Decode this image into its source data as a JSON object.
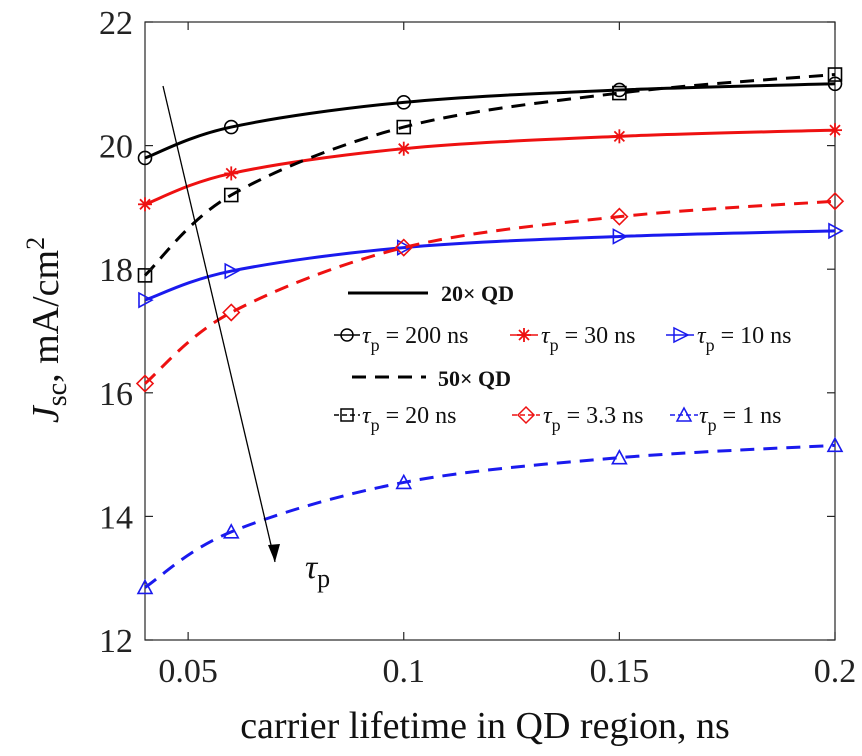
{
  "chart_data": {
    "type": "line",
    "title": "",
    "xlabel": "carrier lifetime in QD region, ns",
    "ylabel": {
      "J": "J",
      "sub": "sc",
      "rest": ", mA/cm",
      "sup": "2"
    },
    "xlim": [
      0.04,
      0.2
    ],
    "ylim": [
      12,
      22
    ],
    "x_ticks": [
      0.05,
      0.1,
      0.15,
      0.2
    ],
    "x_tick_labels": [
      "0.05",
      "0.1",
      "0.15",
      "0.2"
    ],
    "y_ticks": [
      12,
      14,
      16,
      18,
      20,
      22
    ],
    "y_tick_labels": [
      "12",
      "14",
      "16",
      "18",
      "20",
      "22"
    ],
    "grid": false,
    "legend_position": "center-right",
    "x": [
      0.04,
      0.06,
      0.1,
      0.15,
      0.2
    ],
    "series": [
      {
        "name": "τp = 200 ns",
        "group": "20× QD",
        "color": "#000000",
        "dash": "solid",
        "marker": "circle",
        "values": [
          19.8,
          20.3,
          20.7,
          20.9,
          21.0
        ]
      },
      {
        "name": "τp = 30 ns",
        "group": "20× QD",
        "color": "#ee1111",
        "dash": "solid",
        "marker": "asterisk",
        "values": [
          19.05,
          19.55,
          19.95,
          20.15,
          20.25
        ]
      },
      {
        "name": "τp = 10 ns",
        "group": "20× QD",
        "color": "#1a1aee",
        "dash": "solid",
        "marker": "triangle-right",
        "values": [
          17.5,
          17.97,
          18.35,
          18.53,
          18.62
        ]
      },
      {
        "name": "τp = 20 ns",
        "group": "50× QD",
        "color": "#000000",
        "dash": "dashed",
        "marker": "square",
        "values": [
          17.9,
          19.2,
          20.3,
          20.85,
          21.15
        ]
      },
      {
        "name": "τp = 3.3 ns",
        "group": "50× QD",
        "color": "#ee1111",
        "dash": "dashed",
        "marker": "diamond",
        "values": [
          16.15,
          17.3,
          18.35,
          18.85,
          19.1
        ]
      },
      {
        "name": "τp = 1 ns",
        "group": "50× QD",
        "color": "#1a1aee",
        "dash": "dashed",
        "marker": "triangle-up",
        "values": [
          12.85,
          13.75,
          14.55,
          14.95,
          15.15
        ]
      }
    ],
    "legend": {
      "group_labels": [
        "20× QD",
        "50× QD"
      ],
      "entries": [
        {
          "sym": "τ",
          "sub": "p",
          "rest": " = 200 ns"
        },
        {
          "sym": "τ",
          "sub": "p",
          "rest": " = 30 ns"
        },
        {
          "sym": "τ",
          "sub": "p",
          "rest": " = 10 ns"
        },
        {
          "sym": "τ",
          "sub": "p",
          "rest": " = 20 ns"
        },
        {
          "sym": "τ",
          "sub": "p",
          "rest": " = 3.3 ns"
        },
        {
          "sym": "τ",
          "sub": "p",
          "rest": " = 1 ns"
        }
      ]
    },
    "annotation": {
      "sym": "τ",
      "sub": "p"
    }
  }
}
